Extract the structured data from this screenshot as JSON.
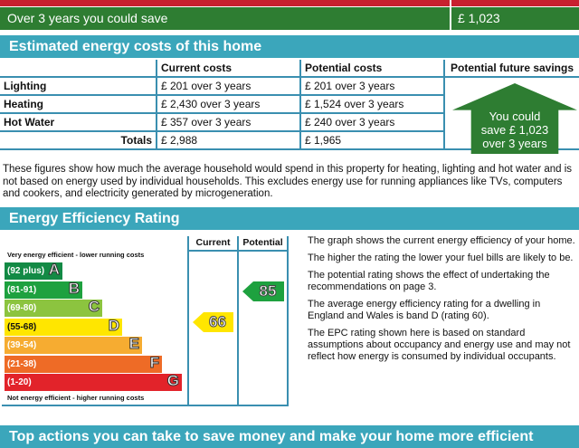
{
  "summary": {
    "save_label": "Over 3 years you could save",
    "save_value": "£ 1,023",
    "colors": {
      "red": "#c8202f",
      "green": "#2e7d32"
    }
  },
  "costs": {
    "title": "Estimated energy costs of this home",
    "headers": [
      "",
      "Current costs",
      "Potential costs",
      "Potential future savings"
    ],
    "rows": [
      {
        "label": "Lighting",
        "current": "£ 201 over 3 years",
        "potential": "£ 201 over 3 years"
      },
      {
        "label": "Heating",
        "current": "£ 2,430 over 3 years",
        "potential": "£ 1,524 over 3 years"
      },
      {
        "label": "Hot Water",
        "current": "£ 357 over 3 years",
        "potential": "£ 240 over 3 years"
      }
    ],
    "totals": {
      "label": "Totals",
      "current": "£ 2,988",
      "potential": "£ 1,965"
    },
    "savings_lines": [
      "You could",
      "save £ 1,023",
      "over 3 years"
    ],
    "note": "These figures show how much the average household would spend in this property for heating, lighting and hot water and is not based on energy used by individual households. This excludes energy use for running appliances like TVs, computers and cookers, and electricity generated by microgeneration."
  },
  "rating": {
    "title": "Energy Efficiency Rating",
    "col_current": "Current",
    "col_potential": "Potential",
    "top_label": "Very energy efficient - lower running costs",
    "bottom_label": "Not energy efficient - higher running costs",
    "bands": [
      {
        "range": "(92 plus)",
        "letter": "A",
        "color": "#138a45"
      },
      {
        "range": "(81-91)",
        "letter": "B",
        "color": "#1ea13f"
      },
      {
        "range": "(69-80)",
        "letter": "C",
        "color": "#8cc43f"
      },
      {
        "range": "(55-68)",
        "letter": "D",
        "color": "#ffe600"
      },
      {
        "range": "(39-54)",
        "letter": "E",
        "color": "#f6ac31"
      },
      {
        "range": "(21-38)",
        "letter": "F",
        "color": "#ee6b26"
      },
      {
        "range": "(1-20)",
        "letter": "G",
        "color": "#e2232a"
      }
    ],
    "current": "66",
    "current_band": "D",
    "potential": "85",
    "potential_band": "B",
    "paragraphs": [
      "The graph shows the current energy efficiency of your home.",
      "The higher the rating the lower your fuel bills are likely to be.",
      "The potential rating shows the effect of undertaking the recommendations on page 3.",
      "The average energy efficiency rating for a dwelling in England and Wales is band D (rating 60).",
      "The EPC rating shown here is based on standard assumptions about occupancy and energy use and may not reflect how energy is consumed by individual occupants."
    ]
  },
  "next_section": {
    "title": "Top actions you can take to save money and make your home more efficient"
  }
}
